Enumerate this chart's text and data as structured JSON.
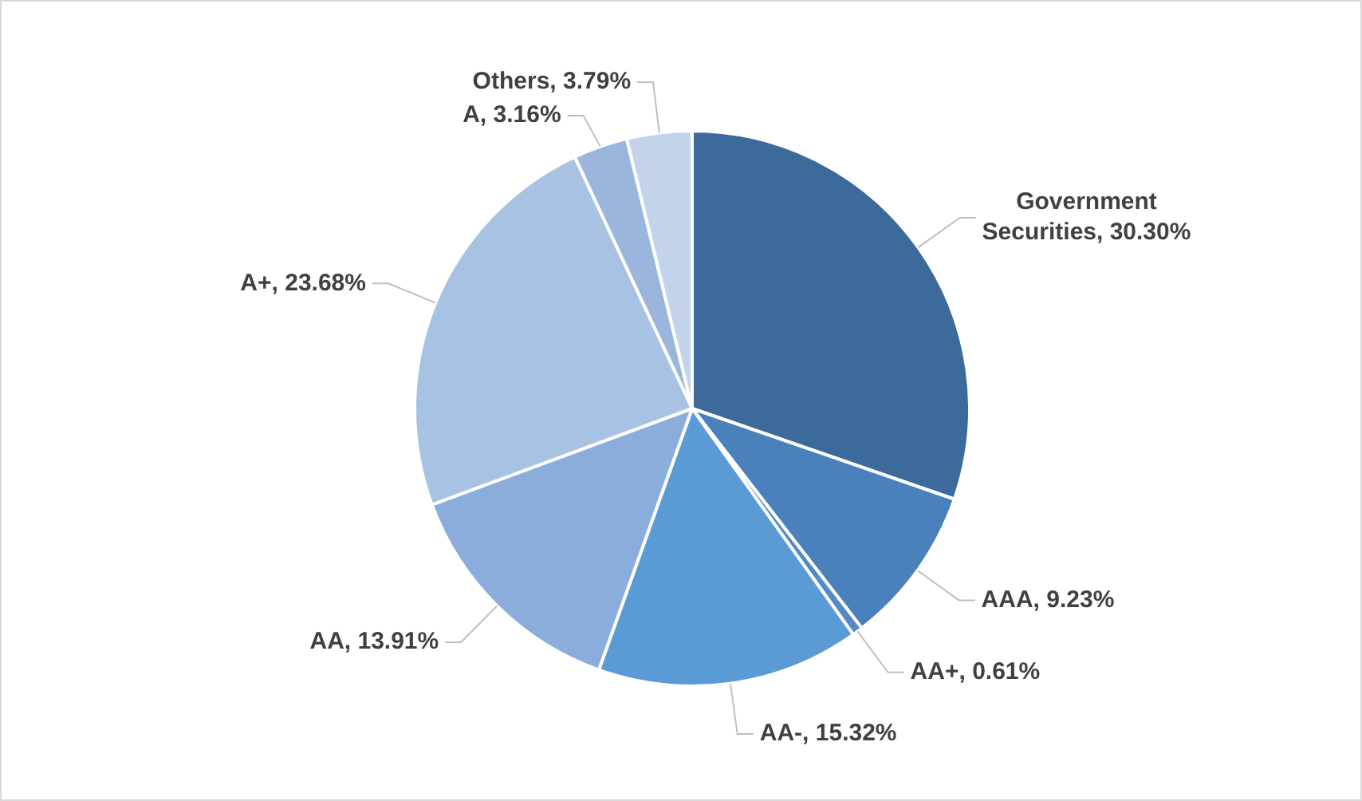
{
  "chart_data": {
    "type": "pie",
    "categories": [
      "Government Securities",
      "AAA",
      "AA+",
      "AA-",
      "AA",
      "A+",
      "A",
      "Others"
    ],
    "values": [
      30.3,
      9.23,
      0.61,
      15.32,
      13.91,
      23.68,
      3.16,
      3.79
    ],
    "value_labels": [
      "30.30%",
      "9.23%",
      "0.61%",
      "15.32%",
      "13.91%",
      "23.68%",
      "3.16%",
      "3.79%"
    ],
    "colors": [
      "#3b6a9b",
      "#4a80bb",
      "#5289c6",
      "#5b9bd5",
      "#8aaddb",
      "#a7c2e3",
      "#9bb6dc",
      "#c3d4ea"
    ],
    "legend": false
  }
}
